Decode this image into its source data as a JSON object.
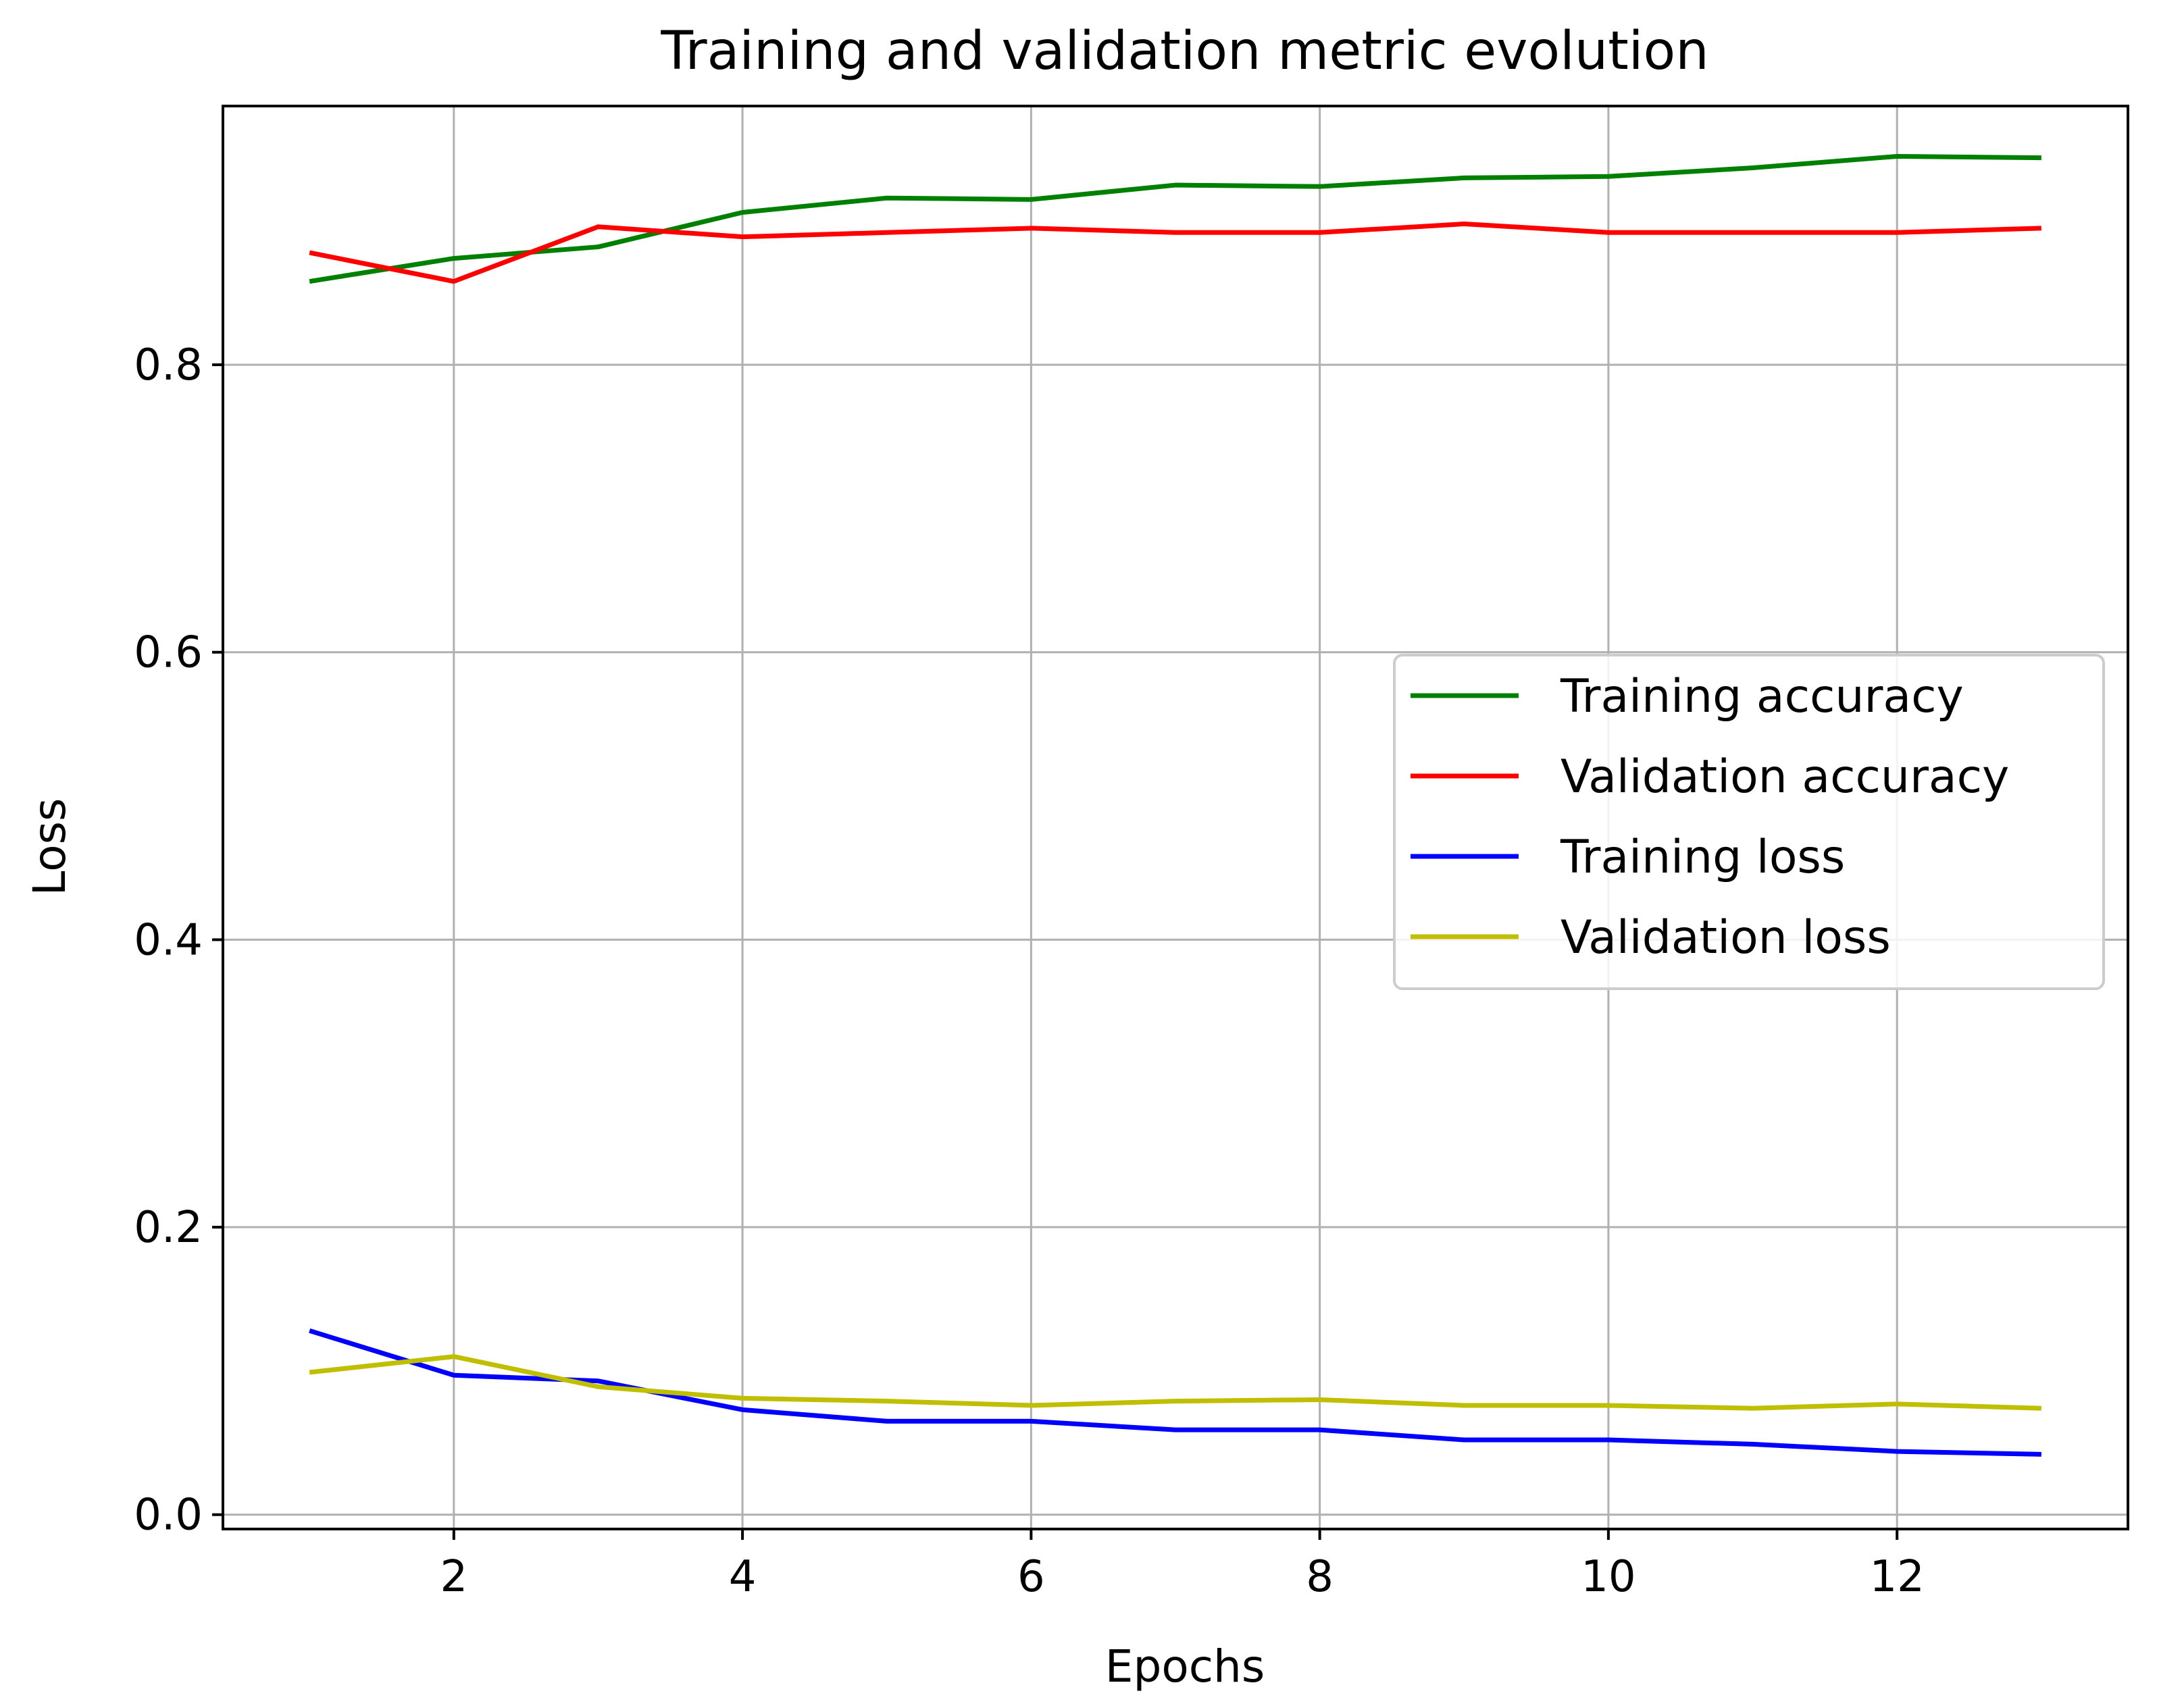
{
  "chart_data": {
    "type": "line",
    "title": "Training and validation metric evolution",
    "xlabel": "Epochs",
    "ylabel": "Loss",
    "xlim": [
      0.4,
      13.6
    ],
    "ylim": [
      -0.01,
      0.98
    ],
    "xticks": [
      2,
      4,
      6,
      8,
      10,
      12
    ],
    "xtick_labels": [
      "2",
      "4",
      "6",
      "8",
      "10",
      "12"
    ],
    "yticks": [
      0.0,
      0.2,
      0.4,
      0.6,
      0.8
    ],
    "ytick_labels": [
      "0.0",
      "0.2",
      "0.4",
      "0.6",
      "0.8"
    ],
    "grid": true,
    "legend_position": "center-right",
    "x": [
      1,
      2,
      3,
      4,
      5,
      6,
      7,
      8,
      9,
      10,
      11,
      12,
      13
    ],
    "series": [
      {
        "name": "Training accuracy",
        "color": "#008000",
        "values": [
          0.858,
          0.874,
          0.882,
          0.906,
          0.916,
          0.915,
          0.925,
          0.924,
          0.93,
          0.931,
          0.937,
          0.945,
          0.944
        ]
      },
      {
        "name": "Validation accuracy",
        "color": "#ff0000",
        "values": [
          0.878,
          0.858,
          0.896,
          0.889,
          0.892,
          0.895,
          0.892,
          0.892,
          0.898,
          0.892,
          0.892,
          0.892,
          0.895
        ]
      },
      {
        "name": "Training loss",
        "color": "#0000ff",
        "values": [
          0.128,
          0.097,
          0.093,
          0.073,
          0.065,
          0.065,
          0.059,
          0.059,
          0.052,
          0.052,
          0.049,
          0.044,
          0.042
        ]
      },
      {
        "name": "Validation loss",
        "color": "#bfbf00",
        "values": [
          0.099,
          0.11,
          0.089,
          0.081,
          0.079,
          0.076,
          0.079,
          0.08,
          0.076,
          0.076,
          0.074,
          0.077,
          0.074
        ]
      }
    ]
  }
}
